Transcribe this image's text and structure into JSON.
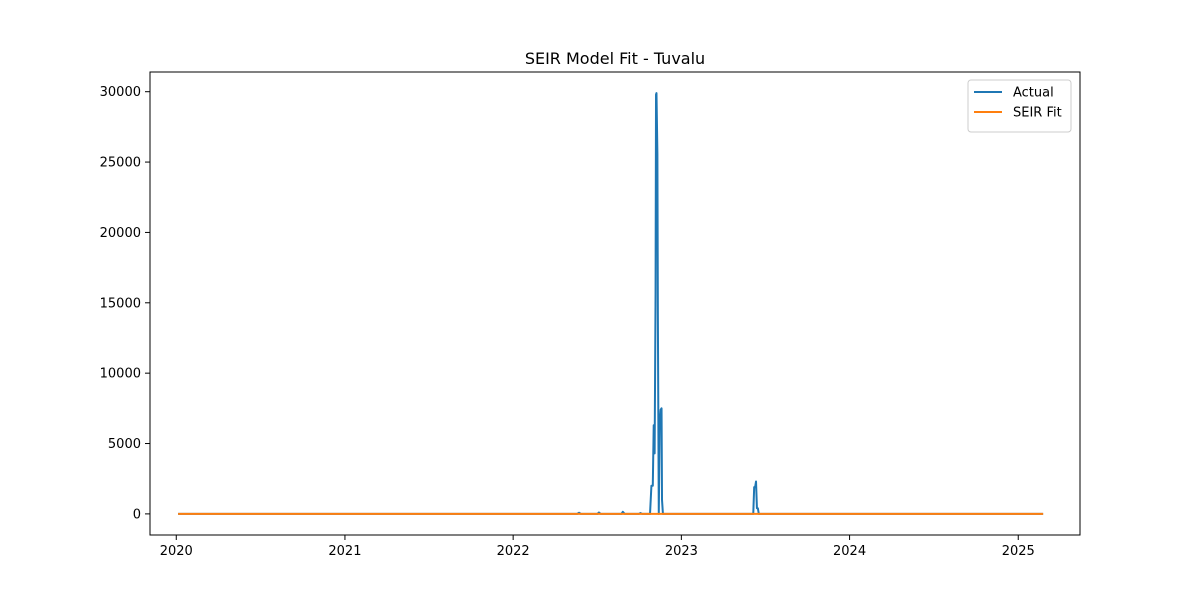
{
  "chart_data": {
    "type": "line",
    "title": "SEIR Model Fit - Tuvalu",
    "xlabel": "",
    "ylabel": "",
    "x_axis": {
      "type": "date",
      "range": [
        "2019-11-05",
        "2025-05-15"
      ],
      "ticks": [
        "2020-01-01",
        "2021-01-01",
        "2022-01-01",
        "2023-01-01",
        "2024-01-01",
        "2025-01-01"
      ],
      "tick_labels": [
        "2020",
        "2021",
        "2022",
        "2023",
        "2024",
        "2025"
      ]
    },
    "y_axis": {
      "range": [
        -1500,
        31400
      ],
      "ticks": [
        0,
        5000,
        10000,
        15000,
        20000,
        25000,
        30000
      ],
      "tick_labels": [
        "0",
        "5000",
        "10000",
        "15000",
        "20000",
        "25000",
        "30000"
      ]
    },
    "grid": false,
    "legend": {
      "position": "top-right",
      "entries": [
        "Actual",
        "SEIR Fit"
      ]
    },
    "series": [
      {
        "name": "Actual",
        "color": "#1f77b4",
        "points": [
          [
            "2020-01-05",
            0
          ],
          [
            "2022-05-20",
            0
          ],
          [
            "2022-05-24",
            80
          ],
          [
            "2022-05-28",
            0
          ],
          [
            "2022-07-03",
            0
          ],
          [
            "2022-07-06",
            100
          ],
          [
            "2022-07-10",
            0
          ],
          [
            "2022-08-24",
            0
          ],
          [
            "2022-08-27",
            150
          ],
          [
            "2022-08-31",
            0
          ],
          [
            "2022-10-01",
            0
          ],
          [
            "2022-10-04",
            60
          ],
          [
            "2022-10-08",
            0
          ],
          [
            "2022-10-25",
            0
          ],
          [
            "2022-10-28",
            2000
          ],
          [
            "2022-10-31",
            2000
          ],
          [
            "2022-11-02",
            6300
          ],
          [
            "2022-11-04",
            4300
          ],
          [
            "2022-11-06",
            15600
          ],
          [
            "2022-11-07",
            29800
          ],
          [
            "2022-11-08",
            29900
          ],
          [
            "2022-11-10",
            25600
          ],
          [
            "2022-11-11",
            14200
          ],
          [
            "2022-11-13",
            0
          ],
          [
            "2022-11-15",
            6400
          ],
          [
            "2022-11-17",
            7400
          ],
          [
            "2022-11-19",
            7500
          ],
          [
            "2022-11-20",
            1000
          ],
          [
            "2022-11-22",
            0
          ],
          [
            "2023-06-06",
            0
          ],
          [
            "2023-06-08",
            1900
          ],
          [
            "2023-06-10",
            1900
          ],
          [
            "2023-06-12",
            2300
          ],
          [
            "2023-06-14",
            400
          ],
          [
            "2023-06-16",
            400
          ],
          [
            "2023-06-18",
            0
          ],
          [
            "2025-02-24",
            0
          ]
        ]
      },
      {
        "name": "SEIR Fit",
        "color": "#ff7f0e",
        "points": [
          [
            "2020-01-05",
            0
          ],
          [
            "2025-02-24",
            0
          ]
        ]
      }
    ]
  }
}
